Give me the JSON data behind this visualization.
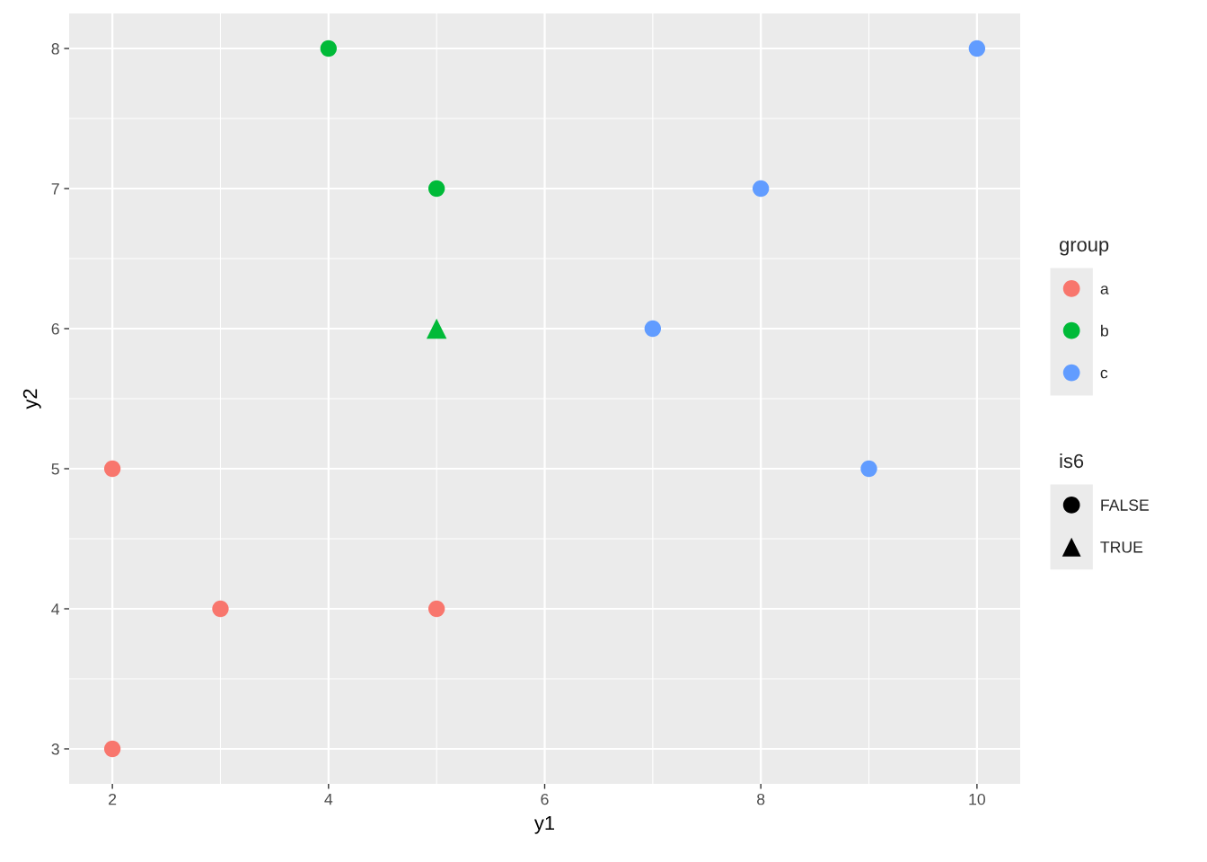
{
  "chart_data": {
    "type": "scatter",
    "xlabel": "y1",
    "ylabel": "y2",
    "series": [
      {
        "name": "a",
        "color": "#f8766d",
        "marker": "circle",
        "x": [
          2,
          3,
          5,
          2
        ],
        "values": [
          5,
          4,
          4,
          3
        ]
      },
      {
        "name": "b",
        "color": "#00ba38",
        "marker": "circle",
        "x": [
          4,
          5
        ],
        "values": [
          8,
          7
        ]
      },
      {
        "color": "#00ba38",
        "marker": "triangle",
        "x": [
          5
        ],
        "values": [
          6
        ]
      },
      {
        "name": "c",
        "color": "#619cff",
        "marker": "circle",
        "x": [
          10,
          8,
          7,
          9
        ],
        "values": [
          8,
          7,
          6,
          5
        ]
      },
      {
        "name": "FALSE",
        "color": "#000000",
        "marker": "circle"
      },
      {
        "name": "TRUE",
        "color": "#000000",
        "marker": "triangle"
      }
    ],
    "legend_title": [
      "group",
      "is6"
    ],
    "xlim": [
      1.6,
      10.4
    ],
    "xticks": [
      2,
      4,
      6,
      8,
      10
    ],
    "ylim": [
      2.75,
      8.25
    ],
    "yticks": [
      3,
      4,
      5,
      6,
      7,
      8
    ],
    "grid": true,
    "legend": "right"
  }
}
